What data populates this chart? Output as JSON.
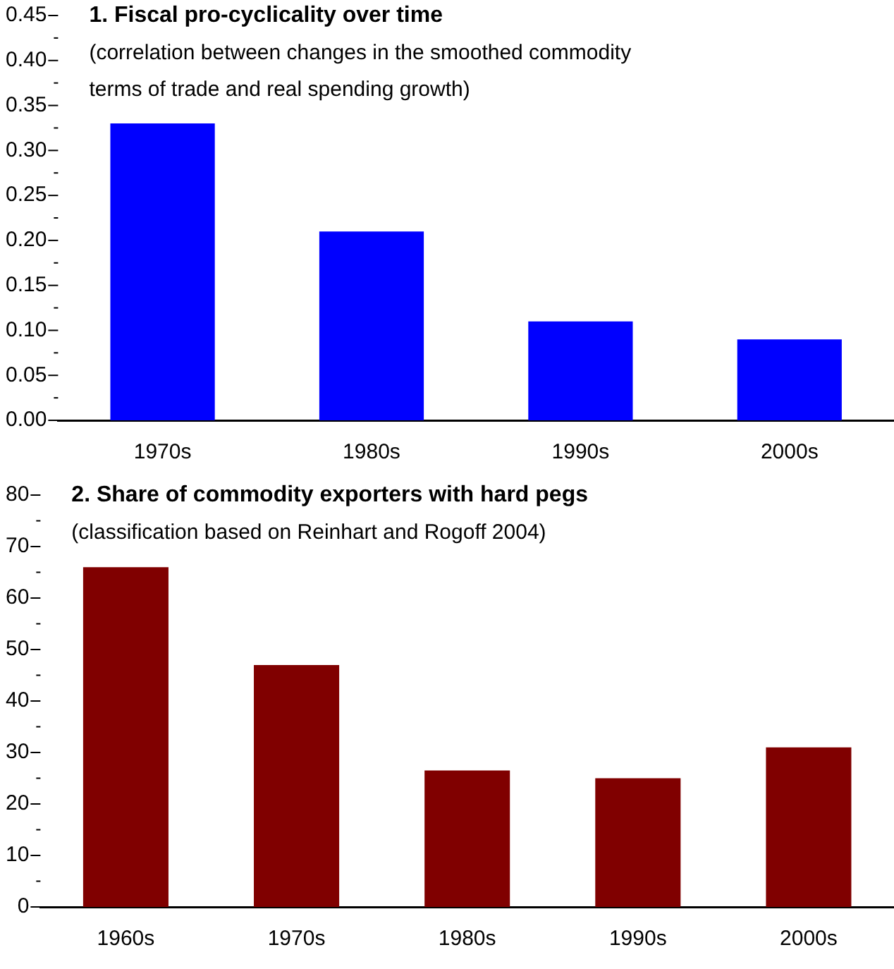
{
  "chart_data": [
    {
      "type": "bar",
      "title": "1. Fiscal pro-cyclicality over time",
      "subtitle": "(correlation between changes in the smoothed commodity\nterms of trade and real spending growth)",
      "categories": [
        "1970s",
        "1980s",
        "1990s",
        "2000s"
      ],
      "values": [
        0.33,
        0.21,
        0.11,
        0.09
      ],
      "color": "#0000ff",
      "ylim": [
        0,
        0.45
      ],
      "yticks": [
        {
          "value": 0,
          "label": "0.00"
        },
        {
          "value": 0.025,
          "label": null
        },
        0.05,
        {
          "value": 0.075,
          "label": null
        },
        {
          "value": 0.1,
          "label": "0.10"
        },
        {
          "value": 0.125,
          "label": null
        },
        0.15,
        {
          "value": 0.175,
          "label": null
        },
        {
          "value": 0.2,
          "label": "0.20"
        },
        {
          "value": 0.225,
          "label": null
        },
        0.25,
        {
          "value": 0.275,
          "label": null
        },
        {
          "value": 0.3,
          "label": "0.30"
        },
        {
          "value": 0.325,
          "label": null
        },
        0.35,
        {
          "value": 0.375,
          "label": null
        },
        {
          "value": 0.4,
          "label": "0.40"
        },
        {
          "value": 0.425,
          "label": null
        },
        0.45
      ]
    },
    {
      "type": "bar",
      "title": "2. Share of commodity exporters with hard pegs",
      "subtitle": "(classification based on Reinhart and Rogoff 2004)",
      "categories": [
        "1960s",
        "1970s",
        "1980s",
        "1990s",
        "2000s"
      ],
      "values": [
        66,
        47,
        26.5,
        25,
        31
      ],
      "color": "#800000",
      "ylim": [
        0,
        80
      ],
      "yticks": [
        0,
        {
          "value": 5,
          "label": null
        },
        10,
        {
          "value": 15,
          "label": null
        },
        20,
        {
          "value": 25,
          "label": null
        },
        30,
        {
          "value": 35,
          "label": null
        },
        40,
        {
          "value": 45,
          "label": null
        },
        50,
        {
          "value": 55,
          "label": null
        },
        60,
        {
          "value": 65,
          "label": null
        },
        70,
        {
          "value": 75,
          "label": null
        },
        80
      ]
    }
  ]
}
